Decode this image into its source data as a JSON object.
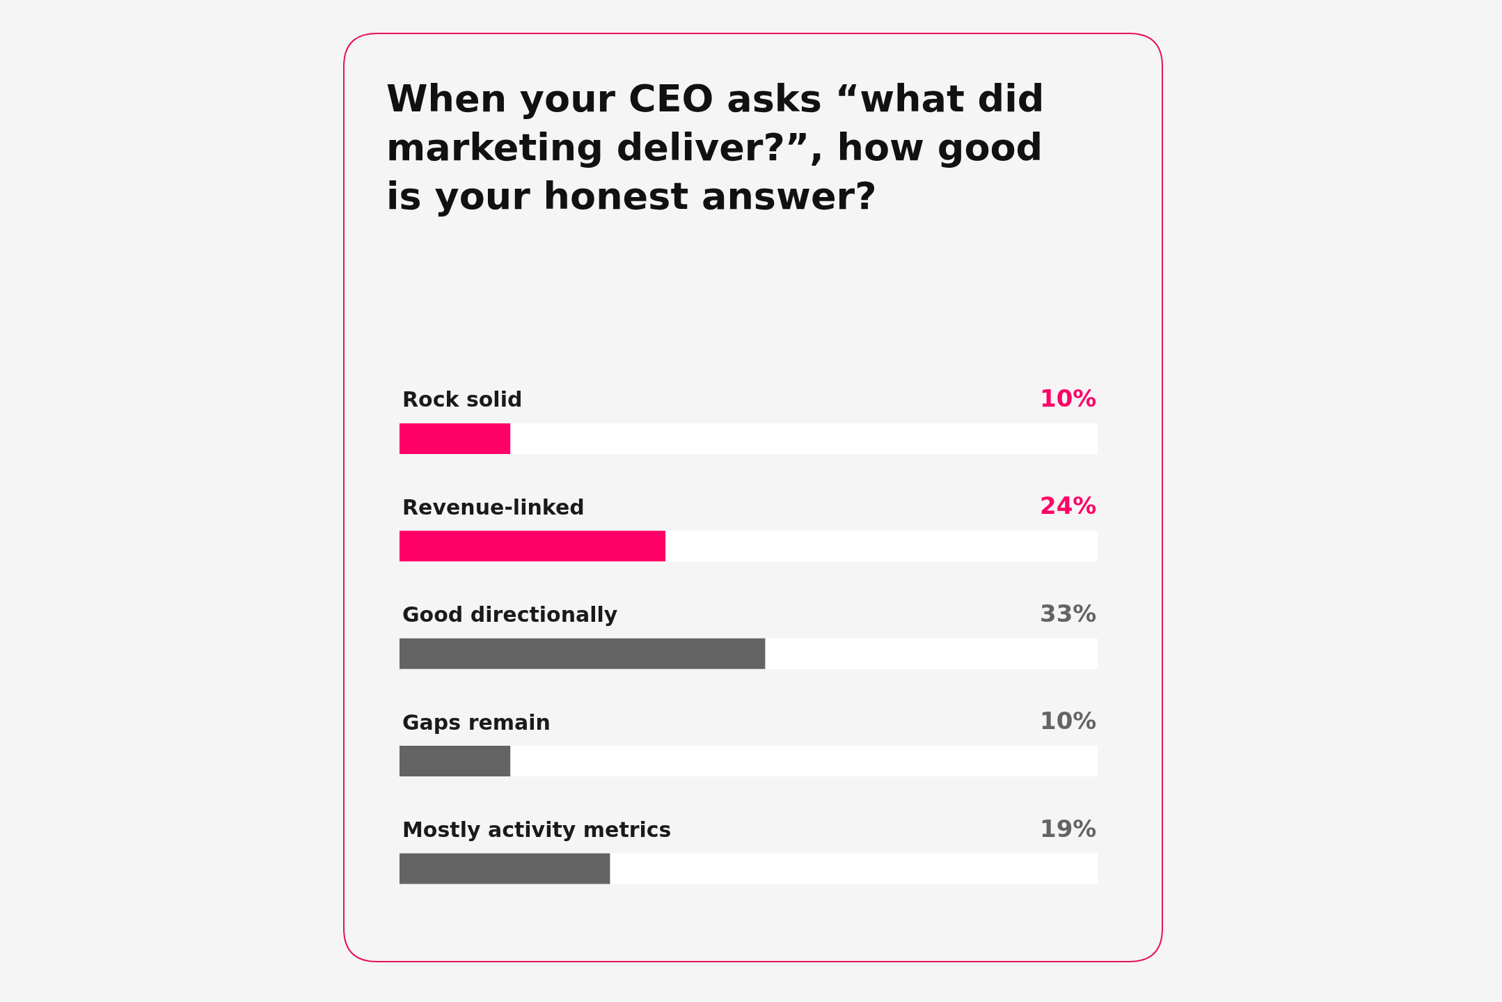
{
  "chart_data": {
    "type": "bar",
    "orientation": "horizontal",
    "title": "When your CEO asks “what did marketing deliver?”, how good is your honest answer?",
    "categories": [
      "Rock solid",
      "Revenue-linked",
      "Good directionally",
      "Gaps remain",
      "Mostly activity metrics"
    ],
    "values": [
      10,
      24,
      33,
      10,
      19
    ],
    "colors": [
      "#ff0066",
      "#ff0066",
      "#646464",
      "#646464",
      "#646464"
    ],
    "value_labels": [
      "10%",
      "24%",
      "33%",
      "10%",
      "19%"
    ],
    "xlim": [
      0,
      63
    ]
  }
}
